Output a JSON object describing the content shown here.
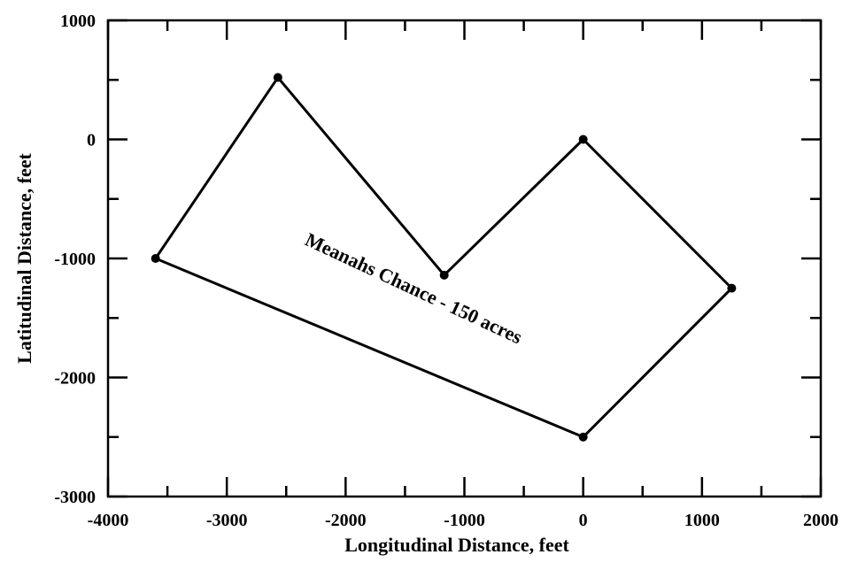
{
  "chart_data": {
    "type": "line",
    "title": "",
    "xlabel": "Longitudinal Distance, feet",
    "ylabel": "Latitudinal Distance, feet",
    "xlim": [
      -4000,
      2000
    ],
    "ylim": [
      -3000,
      1000
    ],
    "x_ticks": [
      -4000,
      -3000,
      -2000,
      -1000,
      0,
      1000,
      2000
    ],
    "y_ticks": [
      -3000,
      -2000,
      -1000,
      0,
      1000
    ],
    "x_tick_labels": [
      "-4000",
      "-3000",
      "-2000",
      "-1000",
      "0",
      "1000",
      "2000"
    ],
    "y_tick_labels": [
      "-3000",
      "-2000",
      "-1000",
      "0",
      "1000"
    ],
    "x_minor_step": 500,
    "y_minor_step": 500,
    "grid": false,
    "legend": "none",
    "closed_polygon": true,
    "series": [
      {
        "points": [
          {
            "x": 0,
            "y": 0
          },
          {
            "x": 1250,
            "y": -1250
          },
          {
            "x": 0,
            "y": -2500
          },
          {
            "x": -3600,
            "y": -1000
          },
          {
            "x": -2570,
            "y": 520
          },
          {
            "x": -1170,
            "y": -1140
          }
        ]
      }
    ],
    "annotations": [
      {
        "text": "Meanahs Chance - 150 acres",
        "x": -1450,
        "y": -1300,
        "angle": 25
      }
    ]
  }
}
